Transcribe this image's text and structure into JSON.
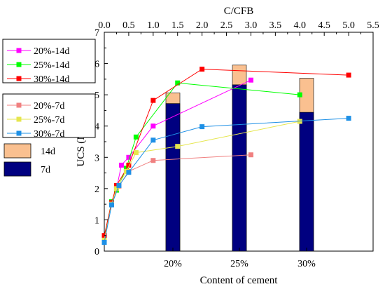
{
  "chart_data": {
    "type": "line",
    "top_axis_label": "C/CFB",
    "left_axis_label": "UCS (MPa)",
    "bottom_axis_label": "Content of cement",
    "top_axis_range": [
      0.0,
      5.5
    ],
    "top_ticks": [
      "0.0",
      "0.5",
      "1.0",
      "1.5",
      "2.0",
      "2.5",
      "3.0",
      "3.5",
      "4.0",
      "4.5",
      "5.0",
      "5.5"
    ],
    "y_range": [
      0,
      7
    ],
    "y_ticks": [
      "0",
      "1",
      "2",
      "3",
      "4",
      "5",
      "6",
      "7"
    ],
    "grid": false,
    "legend_placement": "left, outside",
    "bar_series": [
      {
        "name": "14d",
        "color": "#FAC090"
      },
      {
        "name": "7d",
        "color": "#000080"
      }
    ],
    "bar_categories": [
      "20%",
      "25%",
      "30%"
    ],
    "bars_7d": [
      4.72,
      5.32,
      4.44
    ],
    "bars_14d": [
      5.06,
      5.95,
      5.53
    ],
    "line_series": [
      {
        "name": "20%-14d",
        "color": "#FF00FF",
        "points": [
          [
            0.0,
            0.45
          ],
          [
            0.15,
            1.55
          ],
          [
            0.25,
            2.0
          ],
          [
            0.35,
            2.75
          ],
          [
            0.5,
            3.0
          ],
          [
            1.0,
            4.0
          ],
          [
            3.0,
            5.47
          ]
        ]
      },
      {
        "name": "25%-14d",
        "color": "#00FF00",
        "points": [
          [
            0.0,
            0.45
          ],
          [
            0.15,
            1.58
          ],
          [
            0.25,
            1.95
          ],
          [
            0.45,
            2.65
          ],
          [
            0.65,
            3.65
          ],
          [
            1.5,
            5.38
          ],
          [
            4.0,
            5.0
          ]
        ]
      },
      {
        "name": "30%-14d",
        "color": "#FF0000",
        "points": [
          [
            0.0,
            0.5
          ],
          [
            0.15,
            1.55
          ],
          [
            0.25,
            2.1
          ],
          [
            0.5,
            2.75
          ],
          [
            1.0,
            4.82
          ],
          [
            2.0,
            5.82
          ],
          [
            5.0,
            5.63
          ]
        ]
      },
      {
        "name": "20%-7d",
        "color": "#F08080",
        "points": [
          [
            0.0,
            0.35
          ],
          [
            0.15,
            1.5
          ],
          [
            0.3,
            2.08
          ],
          [
            0.5,
            2.55
          ],
          [
            1.0,
            2.9
          ],
          [
            3.0,
            3.08
          ]
        ]
      },
      {
        "name": "25%-7d",
        "color": "#E6E64D",
        "points": [
          [
            0.0,
            0.35
          ],
          [
            0.15,
            1.5
          ],
          [
            0.25,
            2.0
          ],
          [
            0.45,
            2.55
          ],
          [
            0.65,
            3.15
          ],
          [
            1.5,
            3.35
          ],
          [
            4.0,
            4.15
          ]
        ]
      },
      {
        "name": "30%-7d",
        "color": "#1E90E6",
        "points": [
          [
            0.0,
            0.28
          ],
          [
            0.15,
            1.48
          ],
          [
            0.3,
            2.1
          ],
          [
            0.5,
            2.52
          ],
          [
            1.0,
            3.55
          ],
          [
            2.0,
            3.98
          ],
          [
            5.0,
            4.25
          ]
        ]
      }
    ]
  }
}
